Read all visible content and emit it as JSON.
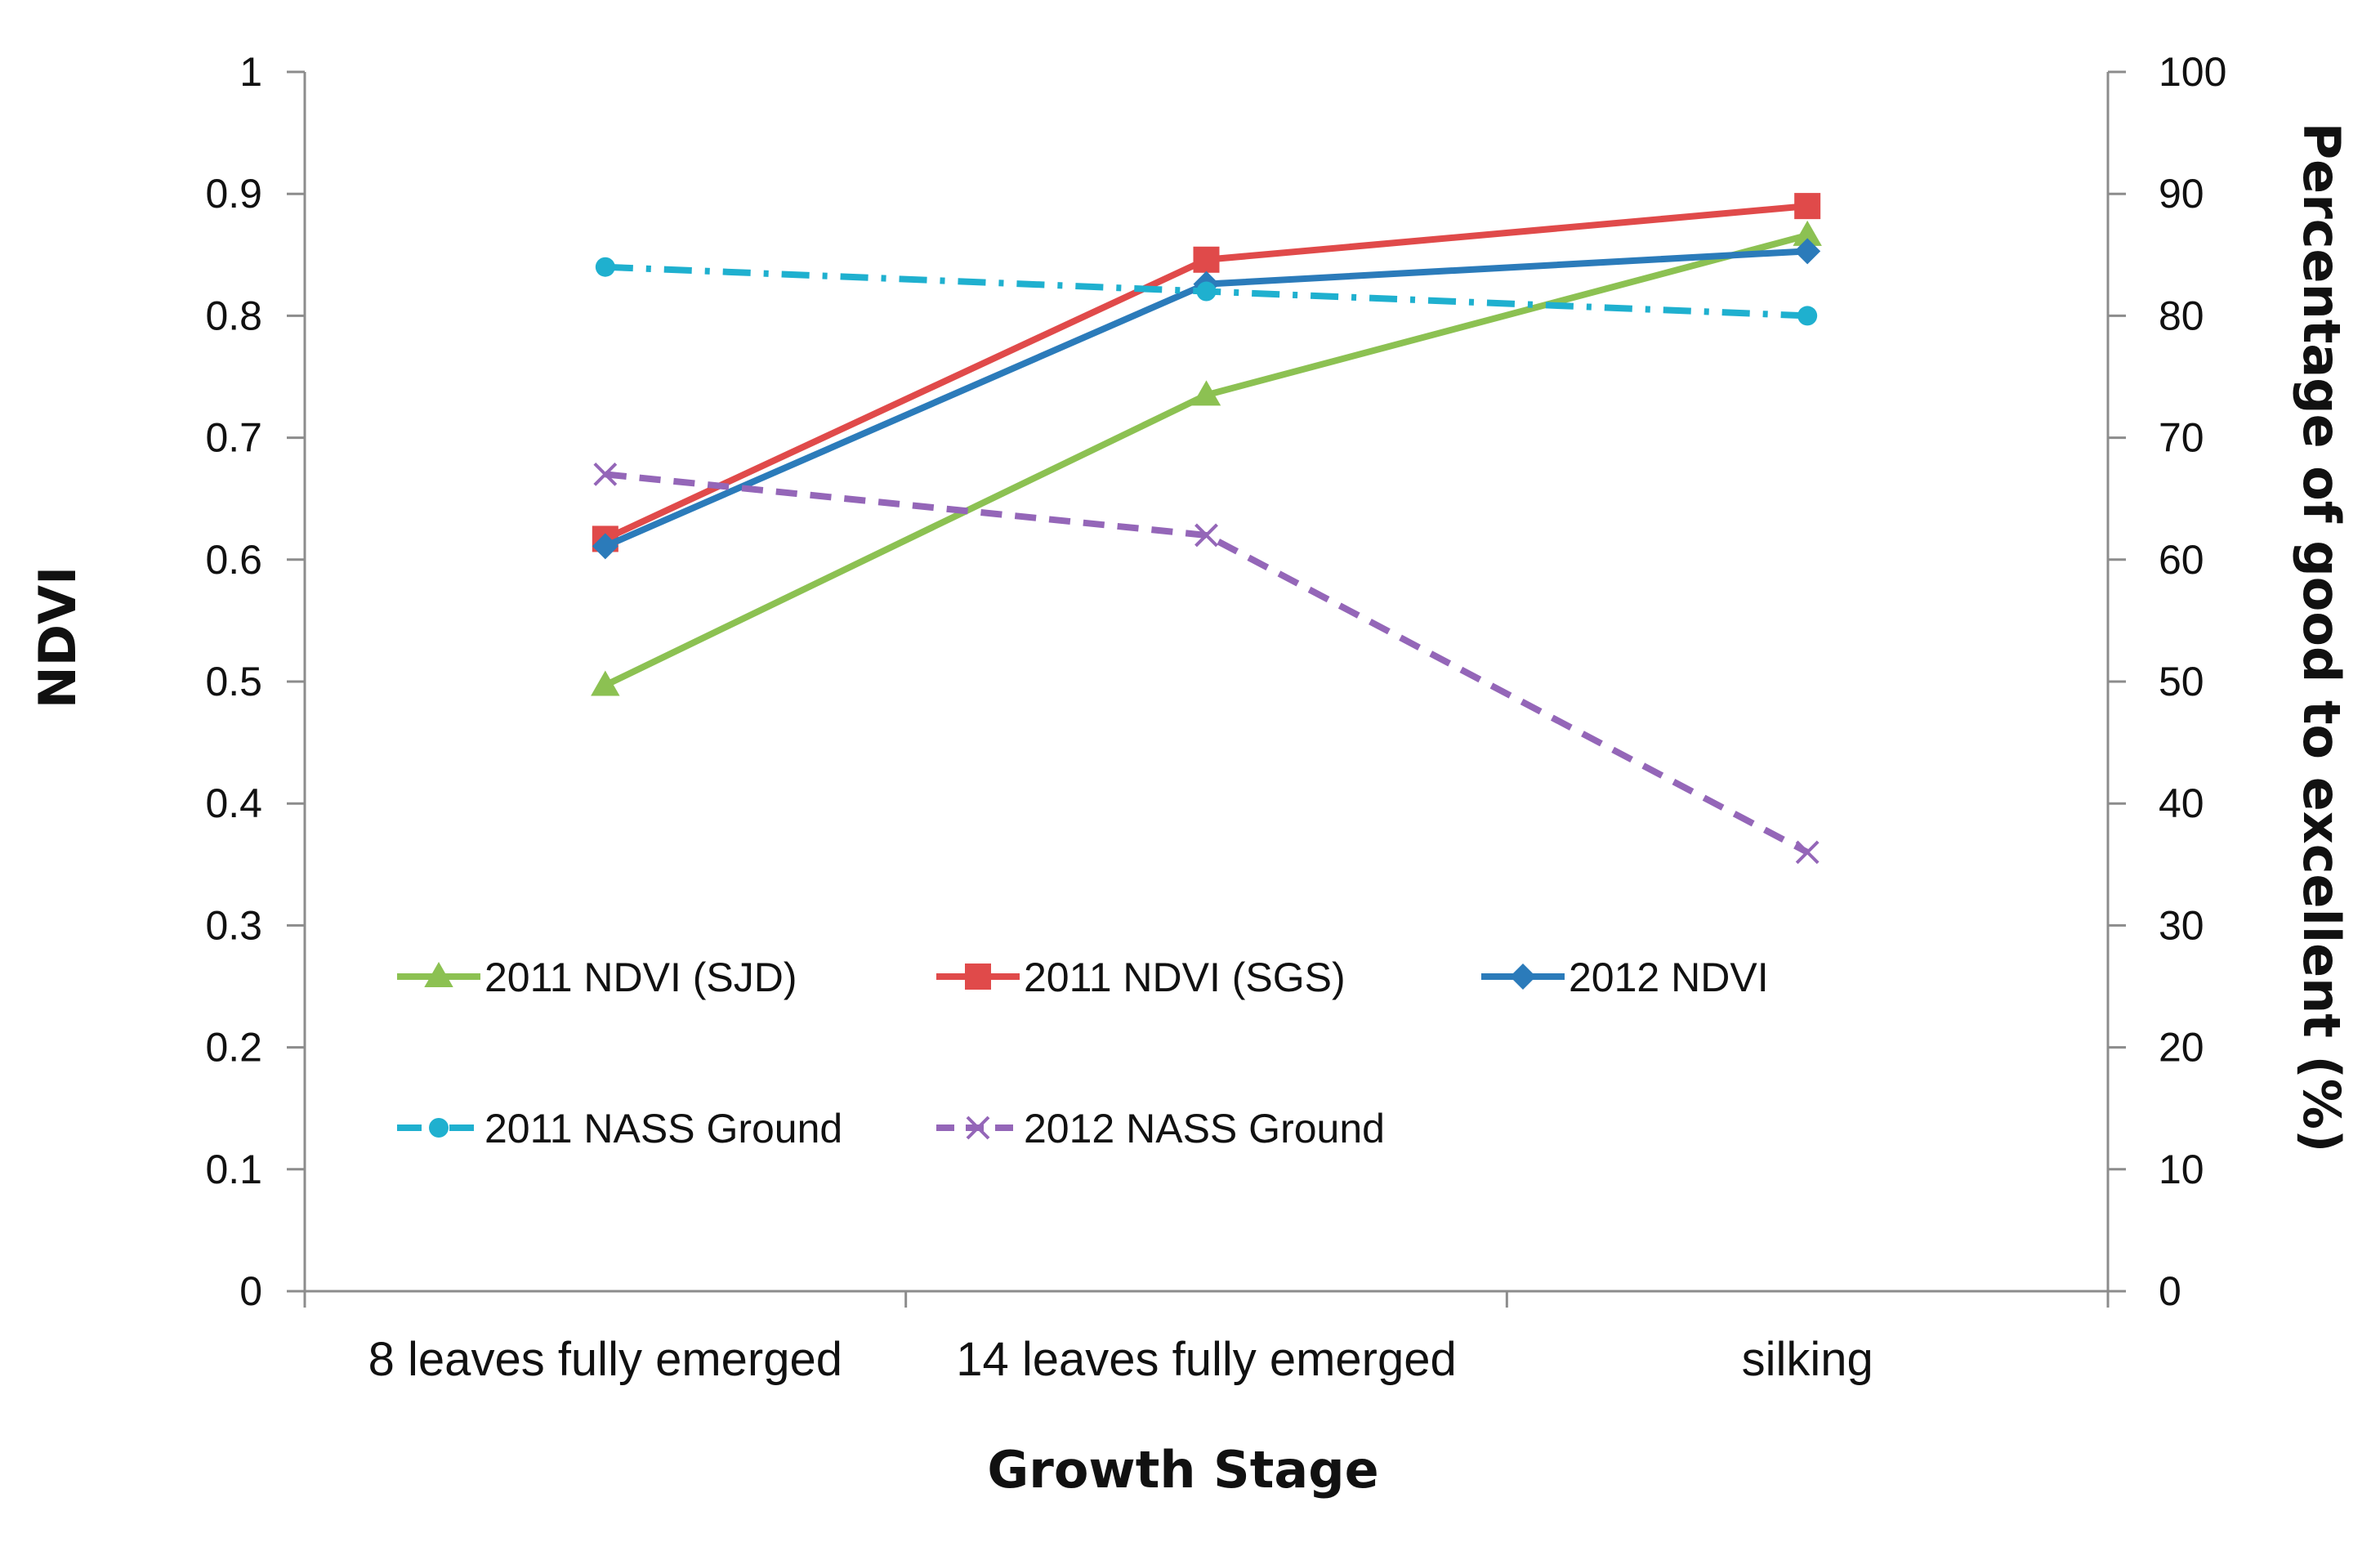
{
  "chart_data": {
    "type": "line",
    "title": "",
    "xlabel": "Growth Stage",
    "ylabel": "NDVI",
    "y2label": "Percentage of good to excellent (%)",
    "categories": [
      "8 leaves fully emerged",
      "14 leaves fully emerged",
      "silking"
    ],
    "ylim": [
      0,
      1
    ],
    "y2lim": [
      0,
      100
    ],
    "yticks": [
      "0",
      "0.1",
      "0.2",
      "0.3",
      "0.4",
      "0.5",
      "0.6",
      "0.7",
      "0.8",
      "0.9",
      "1"
    ],
    "y2ticks": [
      "0",
      "10",
      "20",
      "30",
      "40",
      "50",
      "60",
      "70",
      "80",
      "90",
      "100"
    ],
    "grid": false,
    "legend_position": "inside-bottom-left",
    "series": [
      {
        "name": "2011 NDVI (SJD)",
        "axis": "left",
        "values": [
          0.497,
          0.735,
          0.866
        ],
        "color": "#8cc152",
        "style": "solid",
        "marker": "triangle"
      },
      {
        "name": "2011 NDVI (SGS)",
        "axis": "left",
        "values": [
          0.617,
          0.846,
          0.89
        ],
        "color": "#e04a4a",
        "style": "solid",
        "marker": "square"
      },
      {
        "name": "2012 NDVI",
        "axis": "left",
        "values": [
          0.611,
          0.826,
          0.853
        ],
        "color": "#2b7bba",
        "style": "solid",
        "marker": "diamond"
      },
      {
        "name": "2011 NASS Ground",
        "axis": "right",
        "values": [
          84,
          82,
          80
        ],
        "color": "#1fb0cf",
        "style": "dashdot",
        "marker": "circle"
      },
      {
        "name": "2012 NASS Ground",
        "axis": "right",
        "values": [
          67,
          62,
          36
        ],
        "color": "#9466b8",
        "style": "dashed",
        "marker": "x"
      }
    ]
  }
}
